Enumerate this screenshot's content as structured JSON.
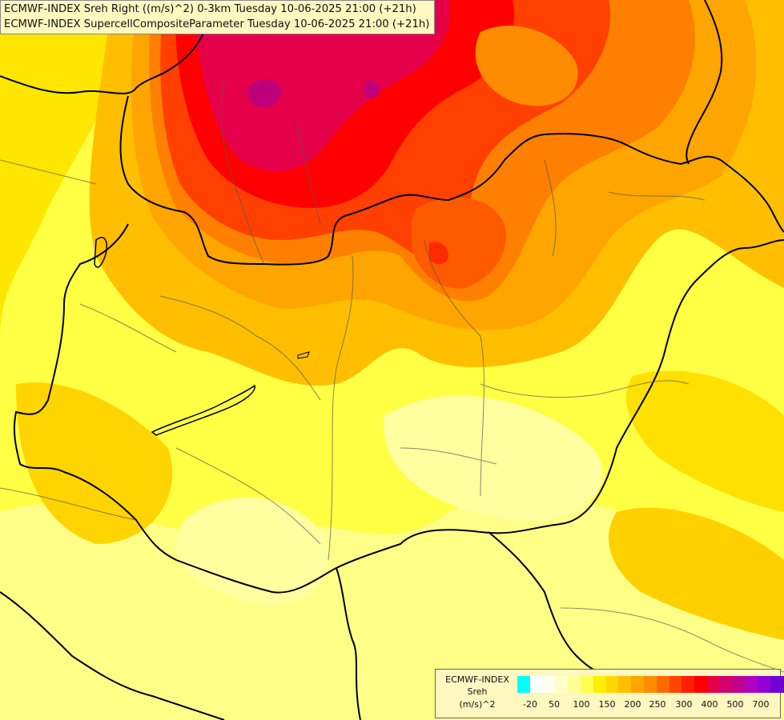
{
  "header": {
    "line1": "ECMWF-INDEX Sreh Right ((m/s)^2) 0-3km Tuesday 10-06-2025 21:00 (+21h)",
    "line2": "ECMWF-INDEX SupercellCompositeParameter Tuesday 10-06-2025 21:00 (+21h)"
  },
  "legend": {
    "title": "ECMWF-INDEX",
    "variable": "Sreh",
    "unit": "(m/s)^2",
    "colors": [
      "#00ffff",
      "#ffffff",
      "#fffff0",
      "#ffffc8",
      "#ffff96",
      "#ffff50",
      "#ffef00",
      "#ffd700",
      "#ffbf00",
      "#ffa500",
      "#ff8c00",
      "#ff6a00",
      "#ff4500",
      "#ff2000",
      "#ff0000",
      "#e6004a",
      "#d0006e",
      "#c00090",
      "#b000c0",
      "#9000d8",
      "#7000d0",
      "#4000b0",
      "#200090",
      "#100070"
    ],
    "ticks": [
      "-20",
      "50",
      "100",
      "150",
      "200",
      "250",
      "300",
      "400",
      "500",
      "700"
    ]
  },
  "map_layers": {
    "base": "#ffff44",
    "field_colors": [
      "#ffff9a",
      "#ffff66",
      "#ffef00",
      "#ffd700",
      "#ffbf00",
      "#ffa500",
      "#ff8c00",
      "#ff6a00",
      "#ff4500",
      "#ff0000",
      "#e6004a",
      "#d0006e",
      "#b000c0"
    ]
  }
}
